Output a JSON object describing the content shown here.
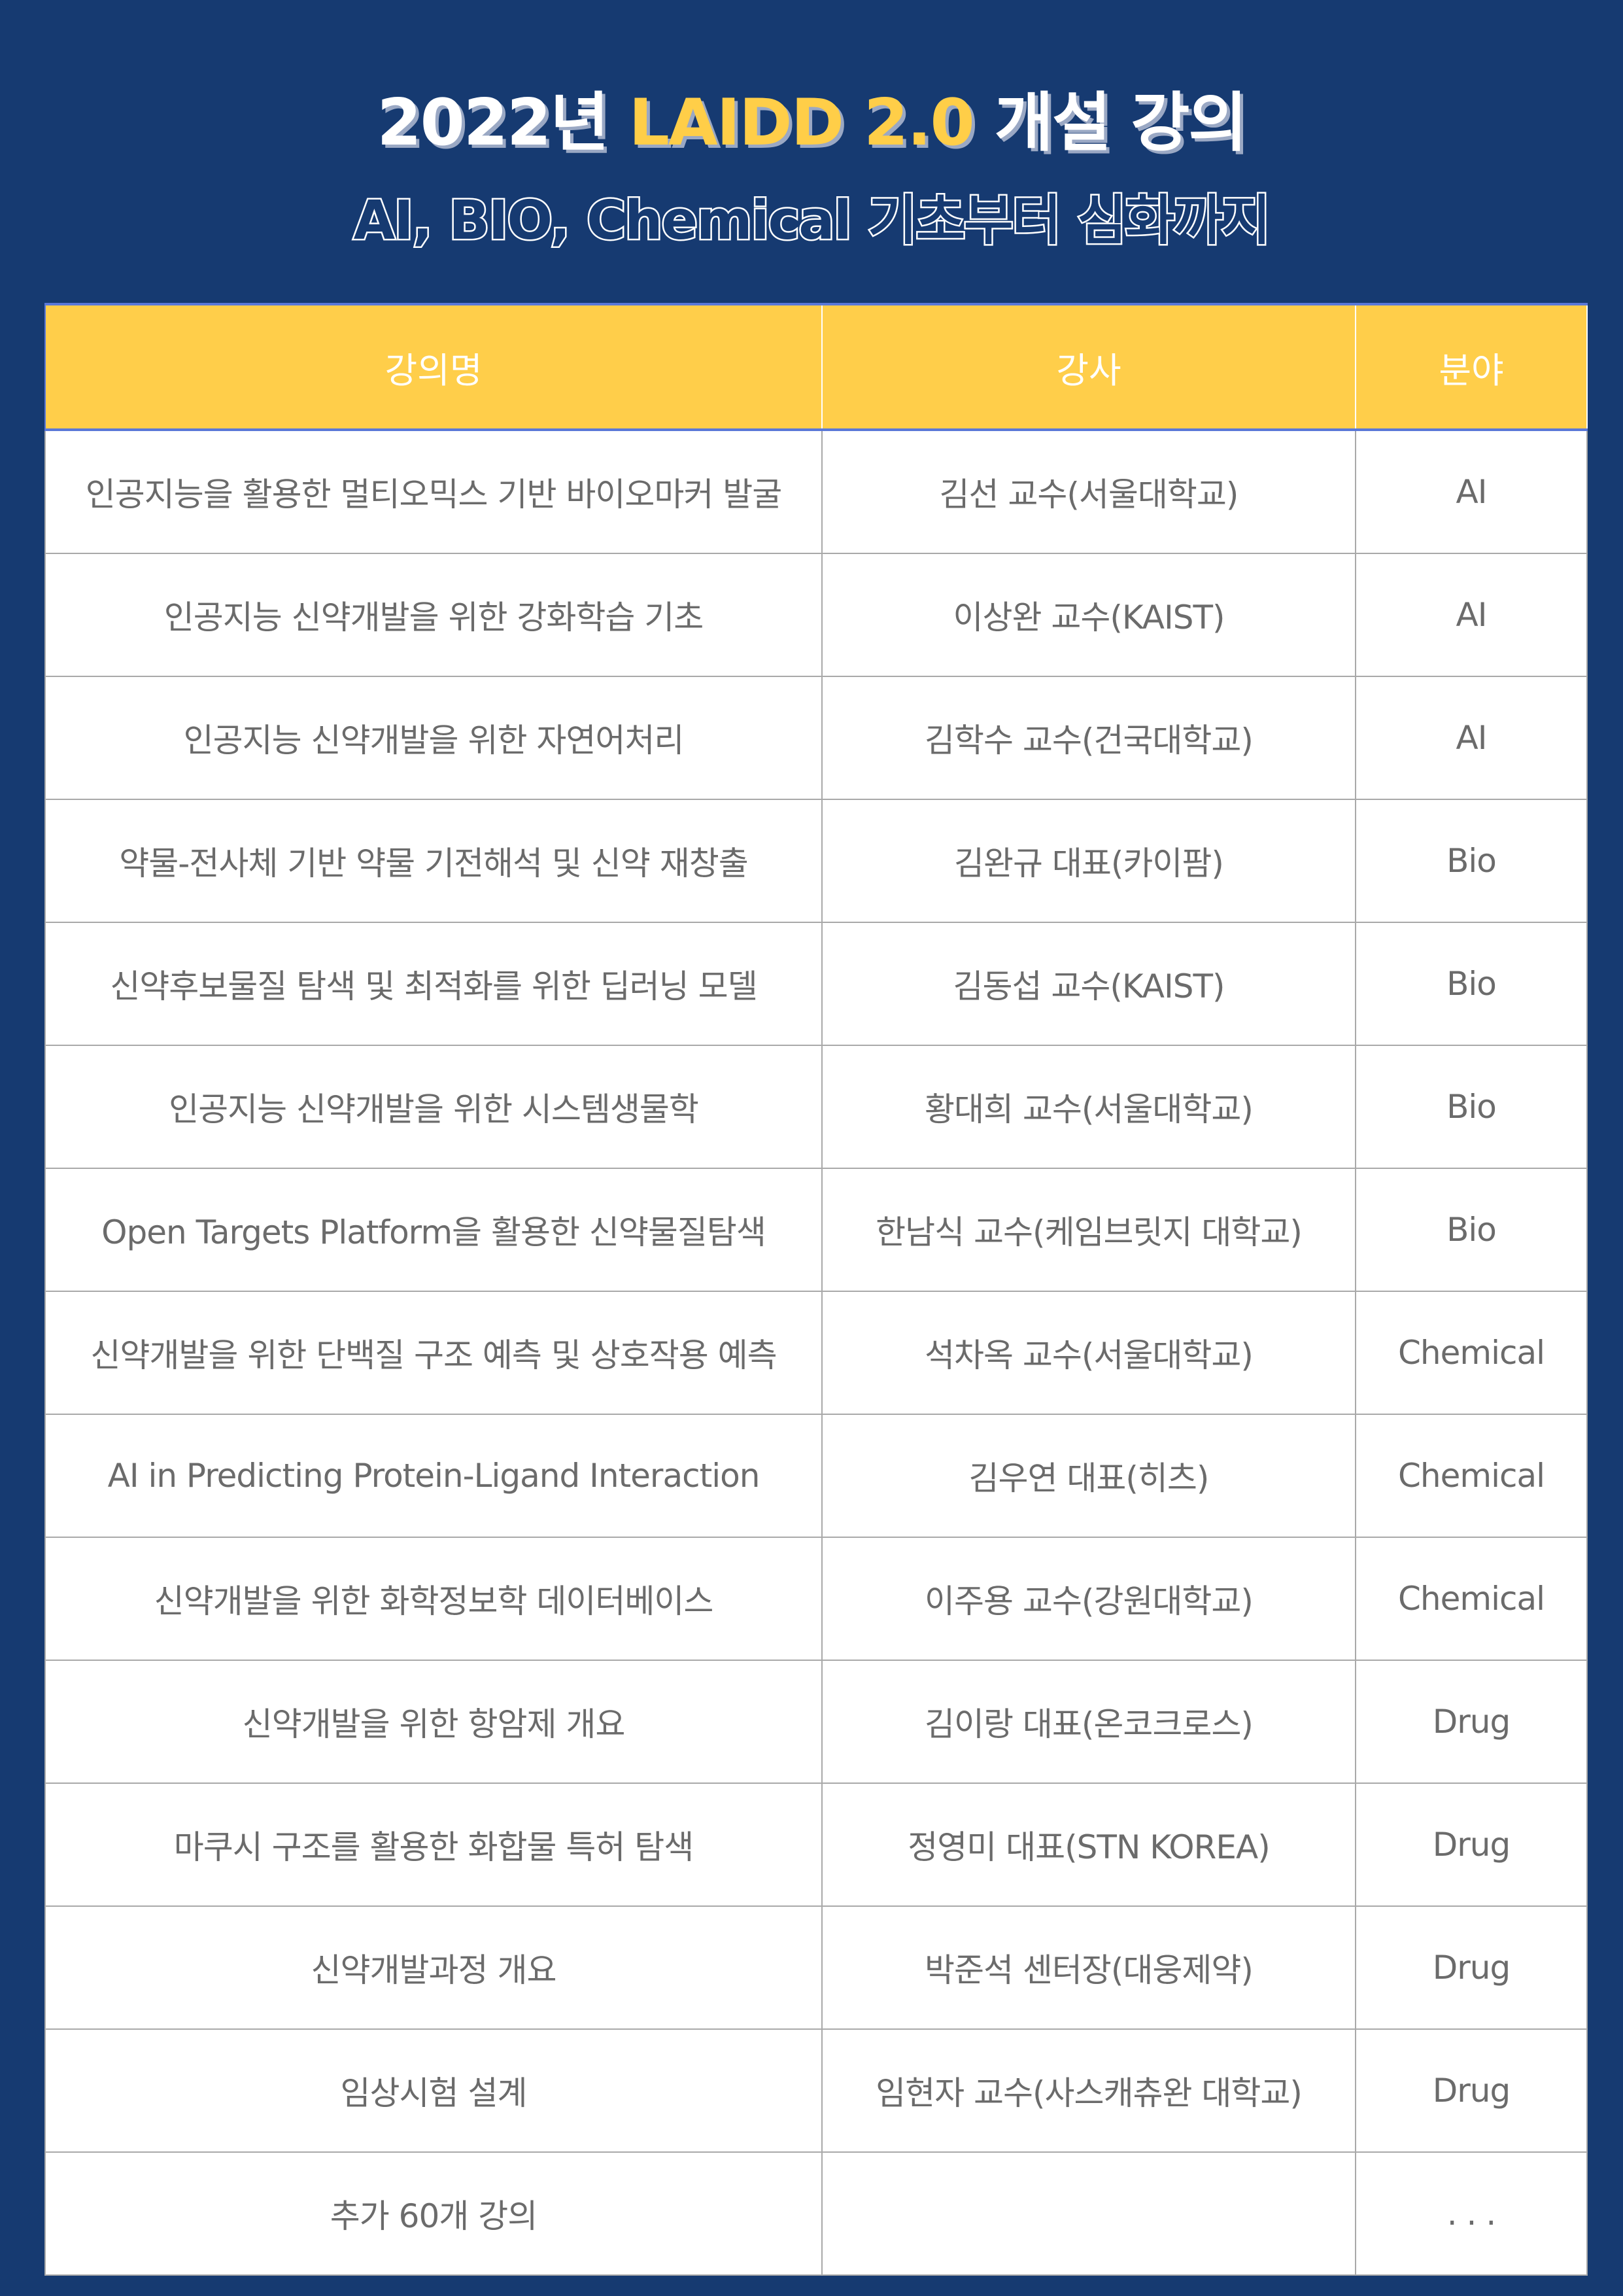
{
  "title": {
    "prefix": "2022년 ",
    "accent": "LAIDD 2.0",
    "suffix": " 개설 강의"
  },
  "subtitle": "AI, BIO, Chemical 기초부터 심화까지",
  "colors": {
    "background": "#163a71",
    "accent": "#ffce48",
    "header": "#ffce4a"
  },
  "table": {
    "headers": [
      "강의명",
      "강사",
      "분야"
    ],
    "rows": [
      {
        "course": "인공지능을 활용한 멀티오믹스 기반 바이오마커 발굴",
        "instructor": "김선 교수(서울대학교)",
        "field": "AI"
      },
      {
        "course": "인공지능 신약개발을 위한 강화학습 기초",
        "instructor": "이상완 교수(KAIST)",
        "field": "AI"
      },
      {
        "course": "인공지능 신약개발을 위한 자연어처리",
        "instructor": "김학수 교수(건국대학교)",
        "field": "AI"
      },
      {
        "course": "약물-전사체 기반 약물 기전해석 및 신약 재창출",
        "instructor": "김완규 대표(카이팜)",
        "field": "Bio"
      },
      {
        "course": "신약후보물질 탐색 및 최적화를 위한 딥러닝 모델",
        "instructor": "김동섭 교수(KAIST)",
        "field": "Bio"
      },
      {
        "course": "인공지능 신약개발을 위한 시스템생물학",
        "instructor": "황대희 교수(서울대학교)",
        "field": "Bio"
      },
      {
        "course": "Open Targets Platform을 활용한 신약물질탐색",
        "instructor": "한남식 교수(케임브릿지 대학교)",
        "field": "Bio"
      },
      {
        "course": "신약개발을 위한 단백질 구조 예측 및 상호작용 예측",
        "instructor": "석차옥 교수(서울대학교)",
        "field": "Chemical"
      },
      {
        "course": "AI in Predicting Protein-Ligand Interaction",
        "instructor": "김우연 대표(히츠)",
        "field": "Chemical"
      },
      {
        "course": "신약개발을 위한 화학정보학 데이터베이스",
        "instructor": "이주용 교수(강원대학교)",
        "field": "Chemical"
      },
      {
        "course": "신약개발을 위한 항암제 개요",
        "instructor": "김이랑 대표(온코크로스)",
        "field": "Drug"
      },
      {
        "course": "마쿠시 구조를 활용한 화합물 특허 탐색",
        "instructor": "정영미 대표(STN KOREA)",
        "field": "Drug"
      },
      {
        "course": "신약개발과정 개요",
        "instructor": "박준석 센터장(대웅제약)",
        "field": "Drug"
      },
      {
        "course": "임상시험 설계",
        "instructor": "임현자 교수(사스캐츄완 대학교)",
        "field": "Drug"
      },
      {
        "course": "추가 60개 강의",
        "instructor": "",
        "field": ". . ."
      }
    ]
  }
}
